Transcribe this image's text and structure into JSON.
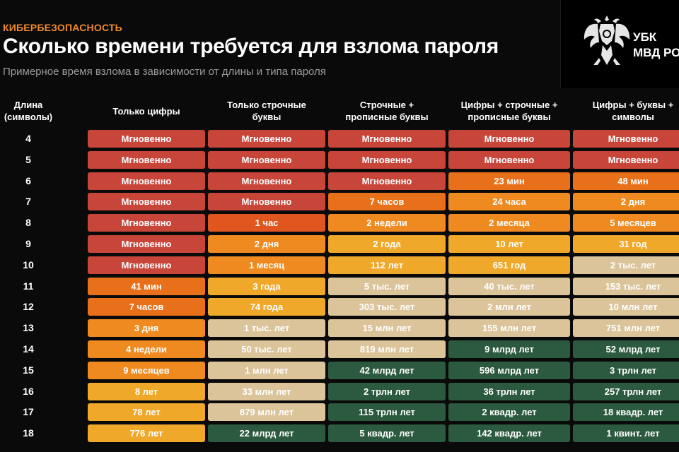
{
  "kicker": "КИБЕРБЕЗОПАСНОСТЬ",
  "title": "Сколько времени требуется для взлома пароля",
  "subtitle": "Примерное время взлома в зависимости от длины и типа пароля",
  "logo": {
    "line1": "УБК",
    "line2": "МВД РО"
  },
  "table": {
    "row_header": [
      "Длина",
      "(символы)"
    ],
    "columns": [
      [
        "Только цифры"
      ],
      [
        "Только строчные",
        "буквы"
      ],
      [
        "Строчные +",
        "прописные буквы"
      ],
      [
        "Цифры + строчные +",
        "прописные буквы"
      ],
      [
        "Цифры + буквы +",
        "символы"
      ]
    ],
    "rows": [
      {
        "length": "4",
        "values": [
          "Мгновенно",
          "Мгновенно",
          "Мгновенно",
          "Мгновенно",
          "Мгновенно"
        ],
        "levels": [
          1,
          1,
          1,
          1,
          1
        ]
      },
      {
        "length": "5",
        "values": [
          "Мгновенно",
          "Мгновенно",
          "Мгновенно",
          "Мгновенно",
          "Мгновенно"
        ],
        "levels": [
          1,
          1,
          1,
          1,
          1
        ]
      },
      {
        "length": "6",
        "values": [
          "Мгновенно",
          "Мгновенно",
          "Мгновенно",
          "23 мин",
          "48 мин"
        ],
        "levels": [
          1,
          1,
          1,
          3,
          3
        ]
      },
      {
        "length": "7",
        "values": [
          "Мгновенно",
          "Мгновенно",
          "7 часов",
          "24 часа",
          "2 дня"
        ],
        "levels": [
          1,
          1,
          3,
          4,
          4
        ]
      },
      {
        "length": "8",
        "values": [
          "Мгновенно",
          "1 час",
          "2 недели",
          "2 месяца",
          "5 месяцев"
        ],
        "levels": [
          1,
          2,
          4,
          4,
          4
        ]
      },
      {
        "length": "9",
        "values": [
          "Мгновенно",
          "2 дня",
          "2 года",
          "10 лет",
          "31 год"
        ],
        "levels": [
          1,
          4,
          5,
          5,
          5
        ]
      },
      {
        "length": "10",
        "values": [
          "Мгновенно",
          "1 месяц",
          "112 лет",
          "651 год",
          "2 тыс. лет"
        ],
        "levels": [
          1,
          4,
          5,
          5,
          6
        ]
      },
      {
        "length": "11",
        "values": [
          "41 мин",
          "3 года",
          "5 тыс. лет",
          "40 тыс. лет",
          "153 тыс. лет"
        ],
        "levels": [
          3,
          5,
          6,
          6,
          6
        ]
      },
      {
        "length": "12",
        "values": [
          "7 часов",
          "74 года",
          "303 тыс. лет",
          "2 млн лет",
          "10 млн лет"
        ],
        "levels": [
          3,
          5,
          6,
          6,
          6
        ]
      },
      {
        "length": "13",
        "values": [
          "3 дня",
          "1 тыс. лет",
          "15 млн лет",
          "155 млн лет",
          "751 млн лет"
        ],
        "levels": [
          4,
          6,
          6,
          6,
          6
        ]
      },
      {
        "length": "14",
        "values": [
          "4 недели",
          "50 тыс. лет",
          "819 млн лет",
          "9 млрд лет",
          "52 млрд лет"
        ],
        "levels": [
          4,
          6,
          6,
          7,
          7
        ]
      },
      {
        "length": "15",
        "values": [
          "9 месяцев",
          "1 млн лет",
          "42 млрд лет",
          "596 млрд лет",
          "3 трлн лет"
        ],
        "levels": [
          4,
          6,
          7,
          7,
          7
        ]
      },
      {
        "length": "16",
        "values": [
          "8 лет",
          "33 млн лет",
          "2 трлн лет",
          "36 трлн лет",
          "257 трлн лет"
        ],
        "levels": [
          5,
          6,
          7,
          7,
          7
        ]
      },
      {
        "length": "17",
        "values": [
          "78 лет",
          "879 млн лет",
          "115 трлн лет",
          "2 квадр. лет",
          "18 квадр. лет"
        ],
        "levels": [
          5,
          6,
          7,
          7,
          7
        ]
      },
      {
        "length": "18",
        "values": [
          "776 лет",
          "22 млрд лет",
          "5 квадр. лет",
          "142 квадр. лет",
          "1 квинт. лет"
        ],
        "levels": [
          5,
          7,
          7,
          7,
          7
        ]
      }
    ],
    "level_colors": {
      "1": "#c8453a",
      "2": "#e0561e",
      "3": "#e8701a",
      "4": "#ee8a1f",
      "5": "#f0a82a",
      "6": "#dcc49a",
      "7": "#2c5a40"
    }
  }
}
